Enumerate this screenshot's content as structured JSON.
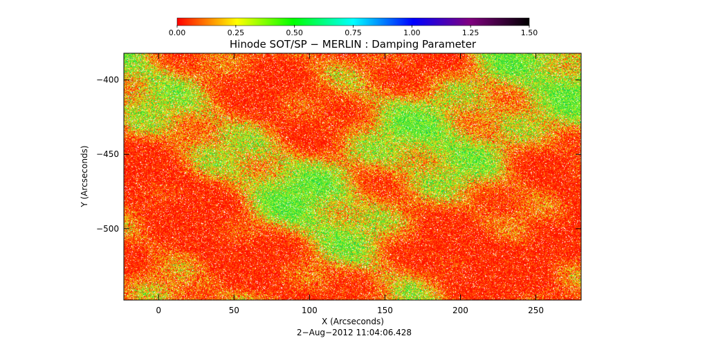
{
  "chart_data": {
    "type": "heatmap",
    "title": "Hinode SOT/SP − MERLIN : Damping Parameter",
    "xlabel": "X (Arcseconds)",
    "ylabel": "Y (Arcseconds)",
    "timestamp": "2−Aug−2012 11:04:06.428",
    "xlim": [
      -23,
      280
    ],
    "ylim": [
      -548,
      -382
    ],
    "x_ticks": [
      0,
      50,
      100,
      150,
      200,
      250
    ],
    "y_ticks": [
      -400,
      -450,
      -500
    ],
    "y_tick_labels": [
      "−400",
      "−450",
      "−500"
    ],
    "colorbar": {
      "range": [
        0.0,
        1.5
      ],
      "ticks": [
        0.0,
        0.25,
        0.5,
        0.75,
        1.0,
        1.25,
        1.5
      ],
      "tick_labels": [
        "0.00",
        "0.25",
        "0.50",
        "0.75",
        "1.00",
        "1.25",
        "1.50"
      ],
      "colors": [
        "#ff0000",
        "#ffff00",
        "#00ff00",
        "#00ffff",
        "#0000ff",
        "#800080",
        "#000000"
      ]
    },
    "dominant_colors": {
      "low_damping": "#ff2a00",
      "mid_damping": "#e6e61a",
      "high_damping": "#22dd44"
    }
  }
}
